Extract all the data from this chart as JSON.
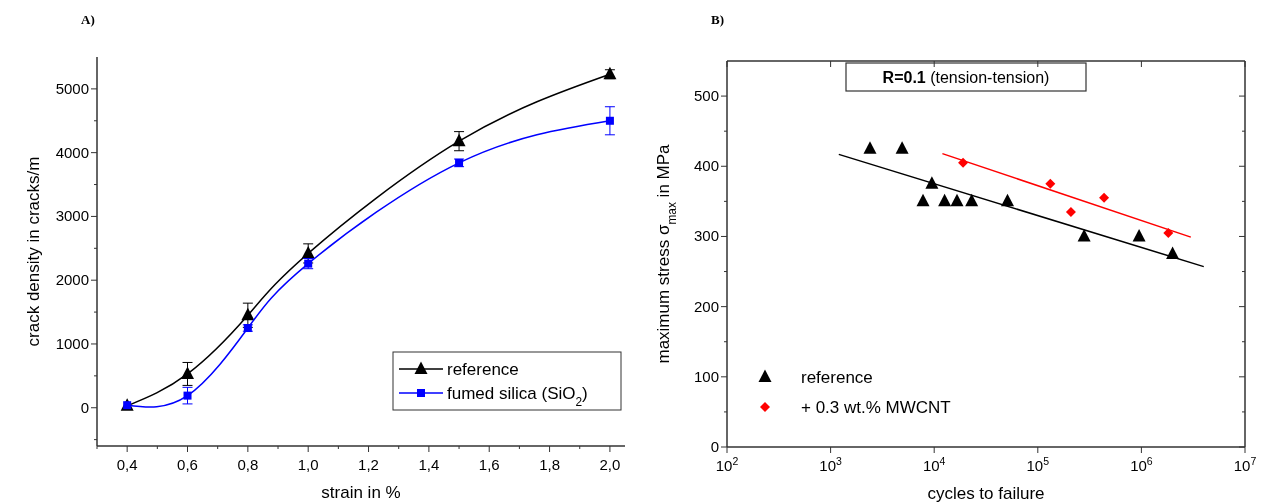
{
  "chart_data": [
    {
      "type": "line",
      "title": "A)",
      "xlabel": "strain in %",
      "ylabel": "crack density in cracks/m",
      "xlim": [
        0.3,
        2.05
      ],
      "xticks": [
        {
          "value": 0.3,
          "label": null
        },
        {
          "value": 0.4,
          "label": "0,4"
        },
        {
          "value": 0.5,
          "label": null
        },
        {
          "value": 0.6,
          "label": "0,6"
        },
        {
          "value": 0.7,
          "label": null
        },
        {
          "value": 0.8,
          "label": "0,8"
        },
        {
          "value": 0.9,
          "label": null
        },
        {
          "value": 1.0,
          "label": "1,0"
        },
        {
          "value": 1.1,
          "label": null
        },
        {
          "value": 1.2,
          "label": "1,2"
        },
        {
          "value": 1.3,
          "label": null
        },
        {
          "value": 1.4,
          "label": "1,4"
        },
        {
          "value": 1.5,
          "label": null
        },
        {
          "value": 1.6,
          "label": "1,6"
        },
        {
          "value": 1.7,
          "label": null
        },
        {
          "value": 1.8,
          "label": "1,8"
        },
        {
          "value": 1.9,
          "label": null
        },
        {
          "value": 2.0,
          "label": "2,0"
        }
      ],
      "ylim": [
        -600,
        5500
      ],
      "yticks": [
        {
          "value": -500,
          "label": null
        },
        0,
        {
          "value": 500,
          "label": null
        },
        1000,
        {
          "value": 1500,
          "label": null
        },
        2000,
        {
          "value": 2500,
          "label": null
        },
        3000,
        {
          "value": 3500,
          "label": null
        },
        4000,
        {
          "value": 4500,
          "label": null
        },
        5000
      ],
      "legend": "bottom right",
      "grid": false,
      "line_style": "solid",
      "series": [
        {
          "name": "reference",
          "color": "#000000",
          "marker": "triangle",
          "x": [
            0.4,
            0.6,
            0.8,
            1.0,
            1.5,
            2.0
          ],
          "values": [
            30,
            530,
            1450,
            2420,
            4180,
            5230
          ],
          "errors": [
            null,
            180,
            190,
            150,
            150,
            70
          ]
        },
        {
          "name": "fumed silica (SiO$_{2}$)",
          "color": "#0000ff",
          "marker": "square",
          "x": [
            0.4,
            0.6,
            0.8,
            1.0,
            1.5,
            2.0
          ],
          "values": [
            40,
            190,
            1250,
            2260,
            3840,
            4500
          ],
          "errors": [
            null,
            130,
            50,
            80,
            60,
            220
          ]
        }
      ]
    },
    {
      "type": "scatter",
      "title": "B)",
      "xlabel": "cycles to failure",
      "ylabel": "maximum stress σ$_{max}$ in MPa",
      "log": "x",
      "xlim": [
        100,
        10000000
      ],
      "xticks": [
        {
          "value": 100,
          "label": "10$^{2}$"
        },
        {
          "value": 1000,
          "label": "10$^{3}$"
        },
        {
          "value": 10000,
          "label": "10$^{4}$"
        },
        {
          "value": 100000,
          "label": "10$^{5}$"
        },
        {
          "value": 1000000,
          "label": "10$^{6}$"
        },
        {
          "value": 10000000,
          "label": "10$^{7}$"
        }
      ],
      "ylim": [
        0,
        550
      ],
      "yticks": [
        0,
        {
          "value": 50,
          "label": null
        },
        100,
        {
          "value": 150,
          "label": null
        },
        200,
        {
          "value": 250,
          "label": null
        },
        300,
        {
          "value": 350,
          "label": null
        },
        400,
        {
          "value": 450,
          "label": null
        },
        500
      ],
      "legend": "bottom left",
      "grid": false,
      "annotations": [
        "R=0.1 (tension-tension)"
      ],
      "series": [
        {
          "name": "reference",
          "color": "#000000",
          "marker": "triangle",
          "x": [
            2400,
            4900,
            9500,
            7800,
            12600,
            16600,
            23000,
            51000,
            280000,
            950000,
            2000000
          ],
          "values": [
            425,
            425,
            375,
            350,
            350,
            350,
            350,
            350,
            300,
            300,
            275
          ]
        },
        {
          "name": "+ 0.3 wt.% MWCNT",
          "color": "#ff0000",
          "marker": "diamond",
          "x": [
            19000,
            132000,
            209000,
            436000,
            1820000
          ],
          "values": [
            405,
            375,
            335,
            355,
            305
          ]
        },
        {
          "type": "line",
          "color": "#000000",
          "marker": "none",
          "x": [
            1200,
            4000000
          ],
          "values": [
            417,
            257
          ]
        },
        {
          "type": "line",
          "color": "#ff0000",
          "marker": "none",
          "x": [
            12000,
            3000000
          ],
          "values": [
            418,
            299
          ]
        }
      ]
    }
  ]
}
